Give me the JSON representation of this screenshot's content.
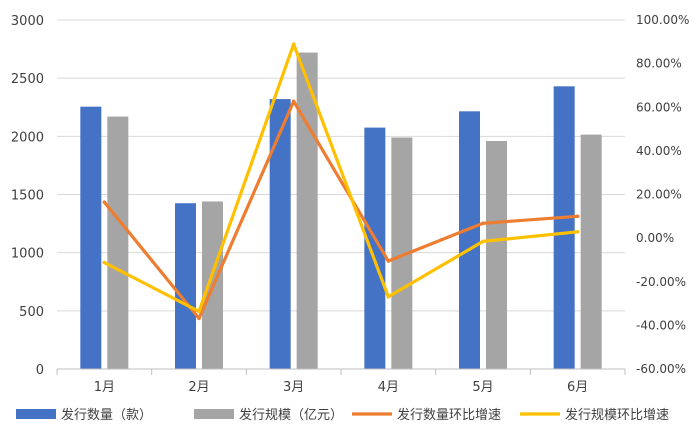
{
  "chart_data": {
    "type": "bar",
    "categories": [
      "1月",
      "2月",
      "3月",
      "4月",
      "5月",
      "6月"
    ],
    "series": [
      {
        "name": "发行数量（款）",
        "kind": "bar",
        "axis": "left",
        "color": "#4472C4",
        "values": [
          2255,
          1425,
          2320,
          2075,
          2215,
          2430
        ]
      },
      {
        "name": "发行规模（亿元）",
        "kind": "bar",
        "axis": "left",
        "color": "#A5A5A5",
        "values": [
          2170,
          1440,
          2720,
          1990,
          1960,
          2015
        ]
      },
      {
        "name": "发行数量环比增速",
        "kind": "line",
        "axis": "right",
        "color": "#ED7D31",
        "values": [
          16.5,
          -36.8,
          62.7,
          -10.5,
          6.8,
          10.0
        ]
      },
      {
        "name": "发行规模环比增速",
        "kind": "line",
        "axis": "right",
        "color": "#FFC000",
        "values": [
          -11.2,
          -33.6,
          88.9,
          -26.9,
          -1.5,
          2.9
        ]
      }
    ],
    "y_left": {
      "ylim": [
        0,
        3000
      ],
      "ticks": [
        "0",
        "500",
        "1000",
        "1500",
        "2000",
        "2500",
        "3000"
      ]
    },
    "y_right": {
      "ylim": [
        -60,
        100
      ],
      "ticks": [
        "-60.00%",
        "-40.00%",
        "-20.00%",
        "0.00%",
        "20.00%",
        "40.00%",
        "60.00%",
        "80.00%",
        "100.00%"
      ]
    },
    "title": "",
    "xlabel": "",
    "ylabel": "",
    "grid": true,
    "legend_position": "bottom"
  }
}
